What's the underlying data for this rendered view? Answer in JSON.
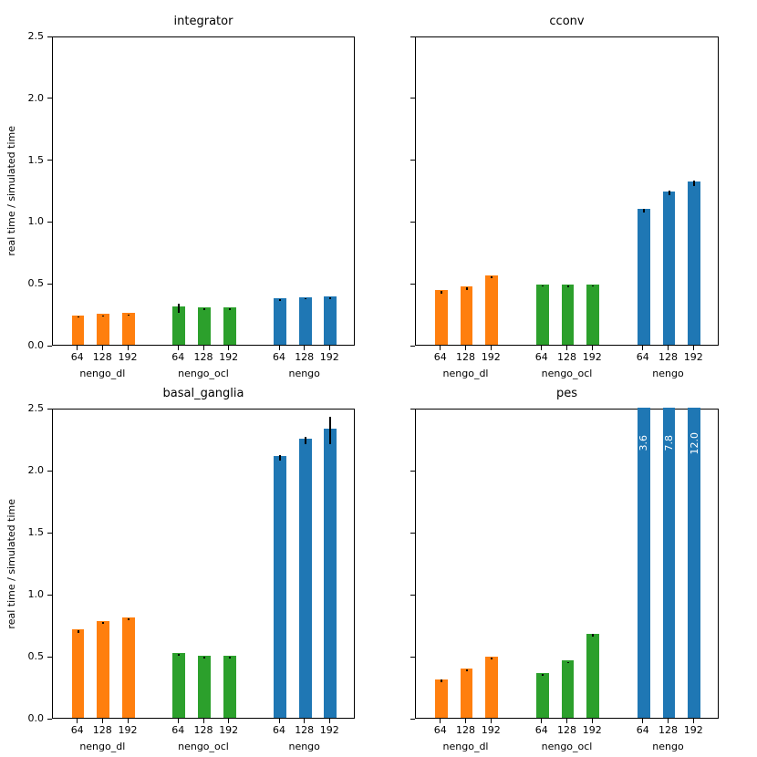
{
  "figure": {
    "background": "#ffffff",
    "axis_color": "#000000",
    "error_bar_color": "#000000",
    "bar_label_color": "#ffffff"
  },
  "chart_data": [
    {
      "id": "integrator",
      "type": "bar",
      "title": "integrator",
      "ylabel": "real time / simulated time",
      "show_ytick_labels": true,
      "ylim": [
        0,
        2.5
      ],
      "yticks": [
        0,
        0.5,
        1,
        1.5,
        2,
        2.5
      ],
      "ytick_labels": [
        "0.0",
        "0.5",
        "1.0",
        "1.5",
        "2.0",
        "2.5"
      ],
      "categories": [
        "64",
        "128",
        "192"
      ],
      "series": [
        {
          "name": "nengo_dl",
          "color": "#ff7f0e",
          "values": [
            0.24,
            0.25,
            0.255
          ],
          "errors": [
            0.005,
            0.004,
            0.006
          ]
        },
        {
          "name": "nengo_ocl",
          "color": "#2ca02c",
          "values": [
            0.31,
            0.3,
            0.3
          ],
          "errors": [
            0.035,
            0.008,
            0.008
          ]
        },
        {
          "name": "nengo",
          "color": "#1f77b4",
          "values": [
            0.375,
            0.385,
            0.39
          ],
          "errors": [
            0.008,
            0.005,
            0.005
          ]
        }
      ]
    },
    {
      "id": "cconv",
      "type": "bar",
      "title": "cconv",
      "ylabel": "",
      "show_ytick_labels": false,
      "ylim": [
        0,
        2.5
      ],
      "yticks": [
        0,
        0.5,
        1,
        1.5,
        2,
        2.5
      ],
      "ytick_labels": [
        "0.0",
        "0.5",
        "1.0",
        "1.5",
        "2.0",
        "2.5"
      ],
      "categories": [
        "64",
        "128",
        "192"
      ],
      "series": [
        {
          "name": "nengo_dl",
          "color": "#ff7f0e",
          "values": [
            0.44,
            0.47,
            0.56
          ],
          "errors": [
            0.012,
            0.01,
            0.006
          ]
        },
        {
          "name": "nengo_ocl",
          "color": "#2ca02c",
          "values": [
            0.49,
            0.49,
            0.49
          ],
          "errors": [
            0.006,
            0.008,
            0.006
          ]
        },
        {
          "name": "nengo",
          "color": "#1f77b4",
          "values": [
            1.1,
            1.24,
            1.32
          ],
          "errors": [
            0.015,
            0.02,
            0.02
          ]
        }
      ]
    },
    {
      "id": "basal_ganglia",
      "type": "bar",
      "title": "basal_ganglia",
      "ylabel": "real time / simulated time",
      "show_ytick_labels": true,
      "ylim": [
        0,
        2.5
      ],
      "yticks": [
        0,
        0.5,
        1,
        1.5,
        2,
        2.5
      ],
      "ytick_labels": [
        "0.0",
        "0.5",
        "1.0",
        "1.5",
        "2.0",
        "2.5"
      ],
      "categories": [
        "64",
        "128",
        "192"
      ],
      "series": [
        {
          "name": "nengo_dl",
          "color": "#ff7f0e",
          "values": [
            0.71,
            0.78,
            0.81
          ],
          "errors": [
            0.012,
            0.005,
            0.005
          ]
        },
        {
          "name": "nengo_ocl",
          "color": "#2ca02c",
          "values": [
            0.52,
            0.5,
            0.5
          ],
          "errors": [
            0.008,
            0.005,
            0.005
          ]
        },
        {
          "name": "nengo",
          "color": "#1f77b4",
          "values": [
            2.11,
            2.25,
            2.33
          ],
          "errors": [
            0.02,
            0.03,
            0.11
          ]
        }
      ]
    },
    {
      "id": "pes",
      "type": "bar",
      "title": "pes",
      "ylabel": "",
      "show_ytick_labels": false,
      "ylim": [
        0,
        2.5
      ],
      "yticks": [
        0,
        0.5,
        1,
        1.5,
        2,
        2.5
      ],
      "ytick_labels": [
        "0.0",
        "0.5",
        "1.0",
        "1.5",
        "2.0",
        "2.5"
      ],
      "categories": [
        "64",
        "128",
        "192"
      ],
      "series": [
        {
          "name": "nengo_dl",
          "color": "#ff7f0e",
          "values": [
            0.31,
            0.4,
            0.49
          ],
          "errors": [
            0.012,
            0.008,
            0.008
          ]
        },
        {
          "name": "nengo_ocl",
          "color": "#2ca02c",
          "values": [
            0.36,
            0.46,
            0.68
          ],
          "errors": [
            0.006,
            0.006,
            0.008
          ]
        },
        {
          "name": "nengo",
          "color": "#1f77b4",
          "values": [
            3.6,
            7.8,
            12.0
          ],
          "errors": [
            0,
            0,
            0
          ],
          "clipped": true,
          "bar_labels": [
            "3.6",
            "7.8",
            "12.0"
          ]
        }
      ]
    }
  ]
}
